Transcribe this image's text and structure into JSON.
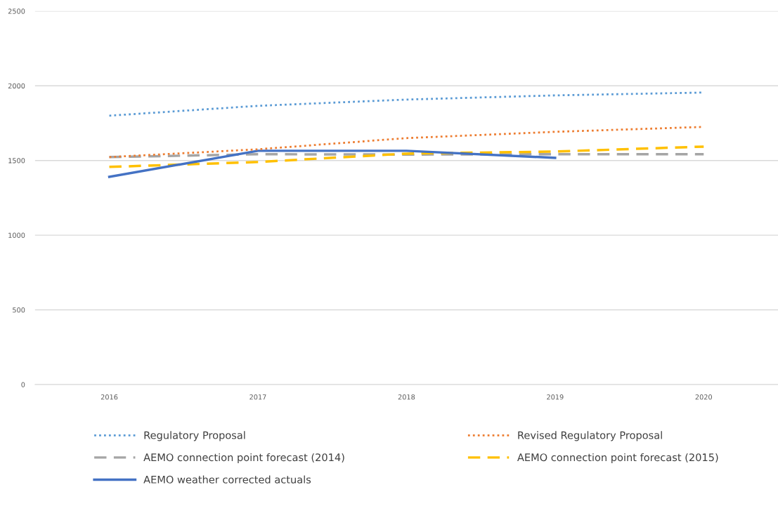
{
  "chart_data": {
    "type": "line",
    "categories": [
      "2016",
      "2017",
      "2018",
      "2019",
      "2020"
    ],
    "series": [
      {
        "name": "Regulatory Proposal",
        "color": "#5b9bd5",
        "line_style": "dotted",
        "values": [
          1800,
          1866,
          1908,
          1936,
          1955
        ]
      },
      {
        "name": "Revised Regulatory Proposal",
        "color": "#ed7d31",
        "line_style": "dotted",
        "values": [
          1523,
          1575,
          1650,
          1692,
          1725
        ]
      },
      {
        "name": "AEMO connection point forecast (2014)",
        "color": "#a5a5a5",
        "line_style": "dashed",
        "values": [
          1523,
          1542,
          1540,
          1542,
          1542
        ]
      },
      {
        "name": "AEMO connection point forecast (2015)",
        "color": "#ffc000",
        "line_style": "dashed",
        "values": [
          1457,
          1490,
          1546,
          1560,
          1593
        ]
      },
      {
        "name": "AEMO weather corrected actuals",
        "color": "#4472c4",
        "line_style": "solid",
        "values": [
          1391,
          1565,
          1565,
          1518,
          null
        ]
      }
    ],
    "ylim": [
      0,
      2500
    ],
    "yticks": [
      0,
      500,
      1000,
      1500,
      2000,
      2500
    ],
    "grid": "y",
    "legend": "bottom",
    "marker": "none"
  }
}
